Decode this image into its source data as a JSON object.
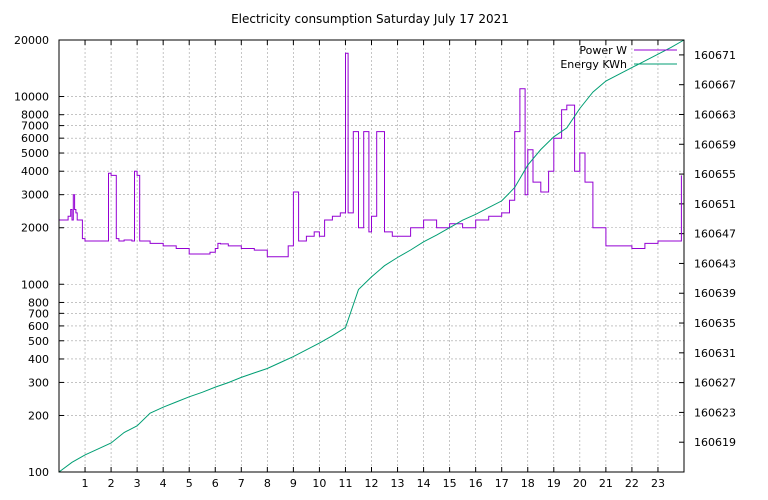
{
  "chart_data": {
    "type": "line",
    "title": "Electricity consumption Saturday July 17 2021",
    "xlim": [
      0,
      24
    ],
    "x_ticks": [
      1,
      2,
      3,
      4,
      5,
      6,
      7,
      8,
      9,
      10,
      11,
      12,
      13,
      14,
      15,
      16,
      17,
      18,
      19,
      20,
      21,
      22,
      23
    ],
    "y_left": {
      "scale": "log",
      "lim": [
        100,
        20000
      ],
      "ticks": [
        100,
        200,
        300,
        400,
        500,
        600,
        700,
        800,
        1000,
        2000,
        3000,
        4000,
        5000,
        6000,
        7000,
        8000,
        10000,
        20000
      ]
    },
    "y_right": {
      "scale": "linear",
      "lim": [
        160615,
        160673
      ],
      "ticks": [
        160619,
        160623,
        160627,
        160631,
        160635,
        160639,
        160643,
        160647,
        160651,
        160655,
        160659,
        160663,
        160667,
        160671
      ]
    },
    "grid": true,
    "legend_position": "top-right",
    "series": [
      {
        "name": "Power W",
        "axis": "left",
        "color": "#9400d3",
        "x": [
          0,
          0.35,
          0.45,
          0.5,
          0.55,
          0.6,
          0.65,
          0.7,
          0.9,
          1.0,
          1.2,
          1.5,
          1.8,
          1.9,
          2.0,
          2.2,
          2.3,
          2.5,
          2.8,
          2.9,
          3.0,
          3.1,
          3.5,
          4.0,
          4.5,
          5.0,
          5.5,
          5.8,
          6.0,
          6.1,
          6.2,
          6.5,
          7.0,
          7.5,
          8.0,
          8.5,
          8.8,
          9.0,
          9.2,
          9.5,
          9.8,
          10.0,
          10.2,
          10.5,
          10.8,
          11.0,
          11.1,
          11.3,
          11.5,
          11.7,
          11.9,
          12.0,
          12.2,
          12.5,
          12.8,
          13.0,
          13.5,
          14.0,
          14.5,
          15.0,
          15.5,
          16.0,
          16.5,
          17.0,
          17.3,
          17.5,
          17.7,
          17.9,
          18.0,
          18.2,
          18.5,
          18.8,
          19.0,
          19.3,
          19.5,
          19.8,
          20.0,
          20.2,
          20.5,
          21.0,
          21.5,
          22.0,
          22.5,
          23.0,
          23.5,
          23.9
        ],
        "values": [
          2200,
          2300,
          2500,
          2200,
          3000,
          2500,
          2400,
          2200,
          1750,
          1700,
          1700,
          1700,
          1700,
          3900,
          3800,
          1750,
          1700,
          1720,
          1700,
          4000,
          3800,
          1700,
          1650,
          1600,
          1550,
          1450,
          1450,
          1480,
          1550,
          1650,
          1640,
          1600,
          1550,
          1520,
          1400,
          1400,
          1600,
          3100,
          1700,
          1800,
          1900,
          1800,
          2200,
          2300,
          2400,
          17000,
          2400,
          6500,
          2000,
          6500,
          1900,
          2300,
          6500,
          1900,
          1800,
          1800,
          2000,
          2200,
          2000,
          2100,
          2000,
          2200,
          2300,
          2400,
          2800,
          6500,
          11000,
          3000,
          5200,
          3500,
          3100,
          4000,
          6000,
          8500,
          9000,
          4000,
          5000,
          3500,
          2000,
          1600,
          1600,
          1550,
          1650,
          1700,
          1700,
          3800
        ]
      },
      {
        "name": "Energy KWh",
        "axis": "right",
        "color": "#009e73",
        "x": [
          0,
          0.5,
          1,
          1.5,
          2,
          2.5,
          3,
          3.5,
          4,
          4.5,
          5,
          5.5,
          6,
          6.5,
          7,
          7.5,
          8,
          8.5,
          9,
          9.5,
          10,
          10.5,
          11,
          11.5,
          12,
          12.5,
          13,
          13.5,
          14,
          14.5,
          15,
          15.5,
          16,
          16.5,
          17,
          17.5,
          18,
          18.5,
          19,
          19.5,
          20,
          20.5,
          21,
          21.5,
          22,
          22.5,
          23,
          23.5,
          24
        ],
        "values": [
          160615,
          160616.3,
          160617.3,
          160618.1,
          160618.9,
          160620.3,
          160621.2,
          160622.9,
          160623.7,
          160624.4,
          160625.1,
          160625.7,
          160626.4,
          160627.0,
          160627.7,
          160628.3,
          160628.9,
          160629.7,
          160630.5,
          160631.4,
          160632.3,
          160633.3,
          160634.4,
          160639.5,
          160641.2,
          160642.7,
          160643.8,
          160644.8,
          160645.9,
          160646.8,
          160647.8,
          160648.8,
          160649.6,
          160650.5,
          160651.4,
          160653.2,
          160656.2,
          160658.3,
          160660.0,
          160661.2,
          160663.8,
          160666.0,
          160667.5,
          160668.4,
          160669.3,
          160670.2,
          160671.1,
          160672.0,
          160673.0
        ]
      }
    ]
  }
}
